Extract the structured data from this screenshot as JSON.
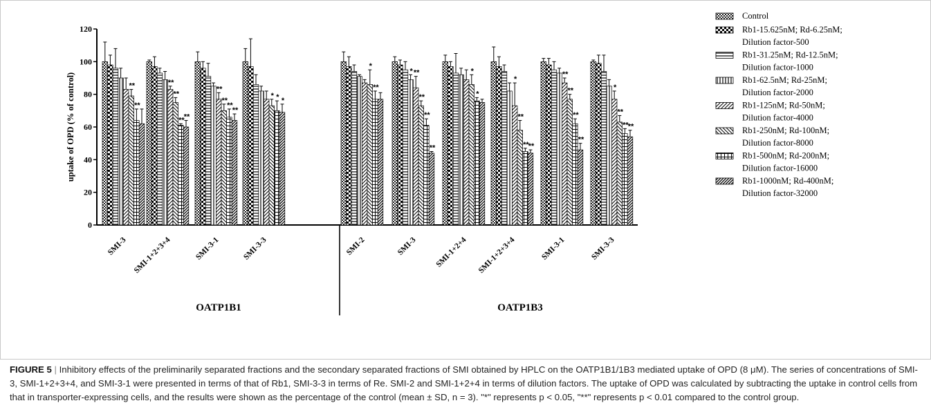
{
  "chart_data": {
    "type": "bar",
    "ylabel": "uptake of OPD (% of control)",
    "ylim": [
      0,
      120
    ],
    "yticks": [
      0,
      20,
      40,
      60,
      80,
      100,
      120
    ],
    "groups": [
      {
        "name": "OATP1B1",
        "categories": [
          "SMI-3",
          "SMI-1+2+3+4",
          "SMI-3-1",
          "SMI-3-3"
        ]
      },
      {
        "name": "OATP1B3",
        "categories": [
          "SMI-2",
          "SMI-3",
          "SMI-1+2+4",
          "SMI-1+2+3+4",
          "SMI-3-1",
          "SMI-3-3"
        ]
      }
    ],
    "series": [
      {
        "name": "Control",
        "values": [
          100,
          100,
          100,
          100,
          100,
          100,
          100,
          100,
          100,
          100
        ],
        "errors": [
          12,
          1,
          6,
          8,
          6,
          3,
          4,
          9,
          2,
          1
        ]
      },
      {
        "name": "Rb1-15.625nM; Rd-6.25nM; Dilution factor-500",
        "values": [
          98,
          97,
          96,
          97,
          97,
          98,
          97,
          97,
          98,
          99
        ],
        "errors": [
          6,
          6,
          4,
          17,
          6,
          3,
          3,
          6,
          4,
          5
        ]
      },
      {
        "name": "Rb1-31.25nM; Rd-12.5nM; Dilution factor-1000",
        "values": [
          96,
          93,
          91,
          86,
          94,
          95,
          93,
          94,
          95,
          94
        ],
        "errors": [
          12,
          3,
          8,
          6,
          4,
          5,
          12,
          4,
          5,
          10
        ]
      },
      {
        "name": "Rb1-62.5nM; Rd-25nM; Dilution factor-2000",
        "values": [
          90,
          89,
          85,
          82,
          91,
          89,
          92,
          82,
          93,
          85
        ],
        "errors": [
          6,
          5,
          2,
          3,
          1,
          3,
          4,
          5,
          3,
          4
        ]
      },
      {
        "name": "Rb1-125nM; Rd-50nM; Dilution factor-4000",
        "values": [
          83,
          83,
          77,
          77,
          87,
          84,
          89,
          73,
          87,
          77
        ],
        "errors": [
          7,
          2,
          4,
          5,
          2,
          7,
          6,
          14,
          3,
          5
        ]
      },
      {
        "name": "Rb1-250nM; Rd-100nM; Dilution factor-8000",
        "values": [
          79,
          75,
          70,
          73,
          86,
          73,
          86,
          58,
          77,
          63
        ],
        "errors": [
          4,
          3,
          4,
          4,
          9,
          3,
          6,
          6,
          3,
          4
        ]
      },
      {
        "name": "Rb1-500nM; Rd-200nM; Dilution factor-16000",
        "values": [
          64,
          61,
          66,
          70,
          77,
          61,
          76,
          45,
          62,
          56
        ],
        "errors": [
          7,
          1,
          5,
          6,
          5,
          4,
          2,
          2,
          3,
          3
        ]
      },
      {
        "name": "Rb1-1000nM; Rd-400nM; Dilution factor-32000",
        "values": [
          62,
          60,
          64,
          69,
          77,
          44,
          75,
          44,
          46,
          54
        ],
        "errors": [
          9,
          4,
          4,
          5,
          4,
          1,
          2,
          2,
          4,
          4
        ]
      }
    ],
    "significance": [
      [
        "",
        "",
        "",
        "",
        "",
        "**",
        "**"
      ],
      [
        "",
        "",
        "",
        "",
        "**",
        "**",
        "**",
        "**"
      ],
      [
        "",
        "",
        "",
        "",
        "**",
        "**",
        "**",
        "**"
      ],
      [
        "",
        "",
        "",
        "",
        "",
        "*",
        "*",
        "*"
      ],
      [
        "",
        "",
        "",
        "",
        "",
        "*",
        "**",
        ""
      ],
      [
        "",
        "",
        "",
        "*",
        "**",
        "**",
        "**",
        "**"
      ],
      [
        "",
        "",
        "",
        "",
        "",
        "*",
        "*",
        ""
      ],
      [
        "",
        "",
        "",
        "",
        "*",
        "**",
        "**",
        "**"
      ],
      [
        "",
        "",
        "",
        "",
        "**",
        "**",
        "**",
        "**"
      ],
      [
        "",
        "",
        "",
        "",
        "*",
        "**",
        "**",
        "**"
      ]
    ]
  },
  "caption": {
    "label": "FIGURE 5",
    "separator": "|",
    "text": "Inhibitory effects of the preliminarily separated fractions and the secondary separated fractions of SMI obtained by HPLC on the OATP1B1/1B3 mediated uptake of OPD (8 μM). The series of concentrations of SMI-3, SMI-1+2+3+4, and SMI-3-1 were presented in terms of that of Rb1, SMI-3-3 in terms of Re. SMI-2 and SMI-1+2+4 in terms of dilution factors. The uptake of OPD was calculated by subtracting the uptake in control cells from that in transporter-expressing cells, and the results were shown as the percentage of the control (mean ± SD, n = 3). \"*\" represents p < 0.05, \"**\" represents p < 0.01 compared to the control group."
  }
}
